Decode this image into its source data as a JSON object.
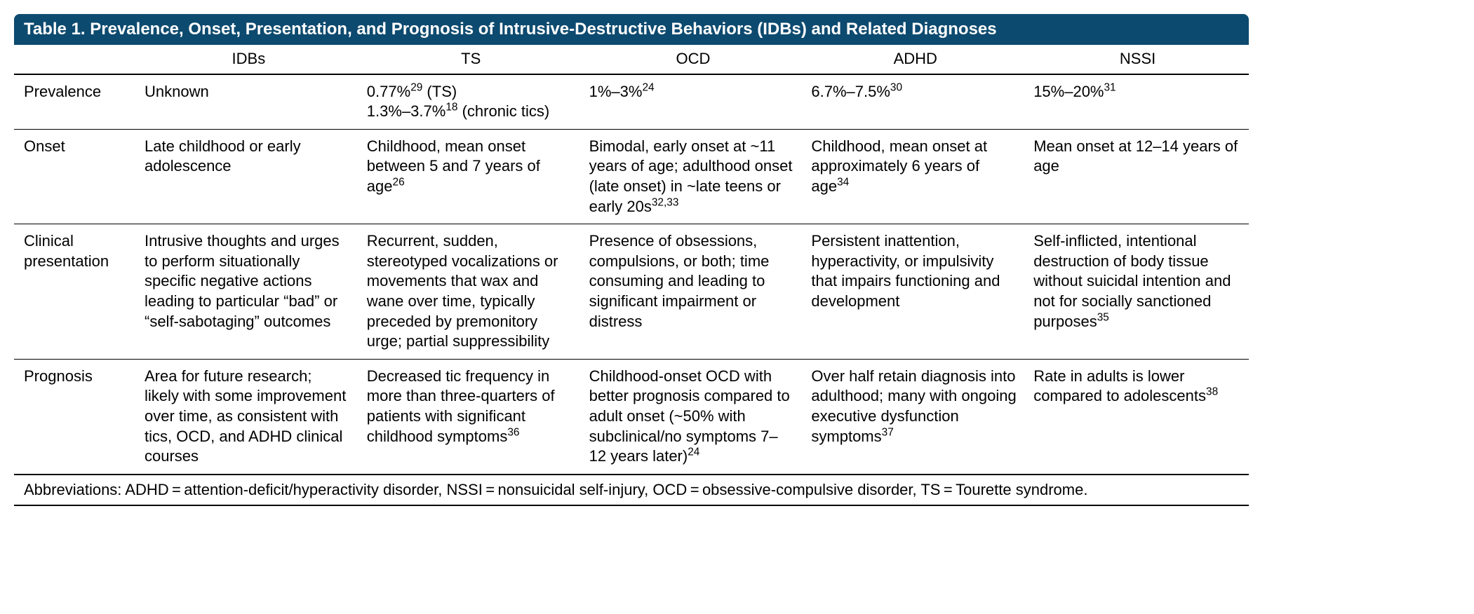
{
  "title": "Table 1. Prevalence, Onset, Presentation, and Prognosis of Intrusive-Destructive Behaviors (IDBs) and Related Diagnoses",
  "colors": {
    "header_bg": "#0d4a6f",
    "header_text": "#ffffff",
    "rule": "#000000",
    "body_text": "#000000",
    "page_bg": "#ffffff"
  },
  "typography": {
    "title_fontsize_pt": 18,
    "body_fontsize_pt": 16,
    "font_family": "Myriad Pro / sans-serif"
  },
  "columns": {
    "rowlabel": "",
    "idbs": "IDBs",
    "ts": "TS",
    "ocd": "OCD",
    "adhd": "ADHD",
    "nssi": "NSSI"
  },
  "rows": {
    "prevalence": {
      "label": "Prevalence",
      "idbs": {
        "text": "Unknown"
      },
      "ts": {
        "line1": {
          "pre": "0.77%",
          "sup": "29",
          "post": " (TS)"
        },
        "line2": {
          "pre": "1.3%–3.7%",
          "sup": "18",
          "post": " (chronic tics)"
        }
      },
      "ocd": {
        "pre": "1%–3%",
        "sup": "24"
      },
      "adhd": {
        "pre": "6.7%–7.5%",
        "sup": "30"
      },
      "nssi": {
        "pre": "15%–20%",
        "sup": "31"
      }
    },
    "onset": {
      "label": "Onset",
      "idbs": {
        "text": "Late childhood or early adolescence"
      },
      "ts": {
        "pre": "Childhood, mean onset between 5 and 7 years of age",
        "sup": "26"
      },
      "ocd": {
        "pre": "Bimodal, early onset at ~11 years of age; adulthood onset (late onset) in ~late teens or early 20s",
        "sup": "32,33"
      },
      "adhd": {
        "pre": "Childhood, mean onset at approximately 6 years of age",
        "sup": "34"
      },
      "nssi": {
        "text": "Mean onset at 12–14 years of age"
      }
    },
    "clinical": {
      "label": "Clinical presentation",
      "idbs": {
        "text": "Intrusive thoughts and urges to perform situationally specific negative actions leading to particular “bad” or “self-sabotaging” outcomes"
      },
      "ts": {
        "text": "Recurrent, sudden, stereotyped vocalizations or movements that wax and wane over time, typically preceded by premonitory urge; partial suppressibility"
      },
      "ocd": {
        "text": "Presence of obsessions, compulsions, or both; time consuming and leading to significant impairment or distress"
      },
      "adhd": {
        "text": "Persistent inattention, hyperactivity, or impulsivity that impairs functioning and development"
      },
      "nssi": {
        "pre": "Self-inflicted, intentional destruction of body tissue without suicidal intention and not for socially sanctioned purposes",
        "sup": "35"
      }
    },
    "prognosis": {
      "label": "Prognosis",
      "idbs": {
        "text": "Area for future research; likely with some improvement over time, as consistent with tics, OCD, and ADHD clinical courses"
      },
      "ts": {
        "pre": "Decreased tic frequency in more than three-quarters of patients with significant childhood symptoms",
        "sup": "36"
      },
      "ocd": {
        "pre": "Childhood-onset OCD with better prognosis compared to adult onset (~50% with subclinical/no symptoms 7–12 years later)",
        "sup": "24"
      },
      "adhd": {
        "pre": "Over half retain diagnosis into adulthood; many with ongoing executive dysfunction symptoms",
        "sup": "37"
      },
      "nssi": {
        "pre": "Rate in adults is lower compared to adolescents",
        "sup": "38"
      }
    }
  },
  "abbreviations": "Abbreviations: ADHD = attention-deficit/hyperactivity disorder, NSSI = nonsuicidal self-injury, OCD = obsessive-compulsive disorder, TS = Tourette syndrome."
}
